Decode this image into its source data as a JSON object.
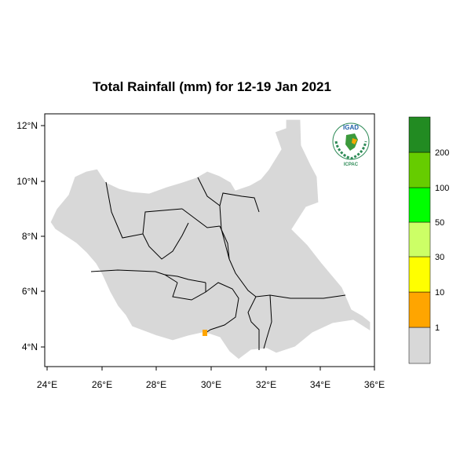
{
  "title": "Total Rainfall (mm) for 12-19 Jan 2021",
  "axes": {
    "lon_ticks": [
      "24°E",
      "26°E",
      "28°E",
      "30°E",
      "32°E",
      "34°E",
      "36°E"
    ],
    "lat_ticks": [
      "12°N",
      "10°N",
      "8°N",
      "6°N",
      "4°N"
    ],
    "lon_range": [
      24,
      36
    ],
    "lat_range": [
      3.3,
      12.4
    ]
  },
  "legend": {
    "colors": [
      "#d8d8d8",
      "#ffa500",
      "#ffff00",
      "#ccff66",
      "#00ff00",
      "#66cc00",
      "#228b22"
    ],
    "labels": [
      "1",
      "10",
      "30",
      "50",
      "100",
      "200"
    ]
  },
  "logo": {
    "top_text": "IGAD",
    "bottom_text": "ICPAC"
  },
  "colors": {
    "land_fill": "#d8d8d8",
    "border": "#000000",
    "rain_patch": "#ffa500"
  }
}
